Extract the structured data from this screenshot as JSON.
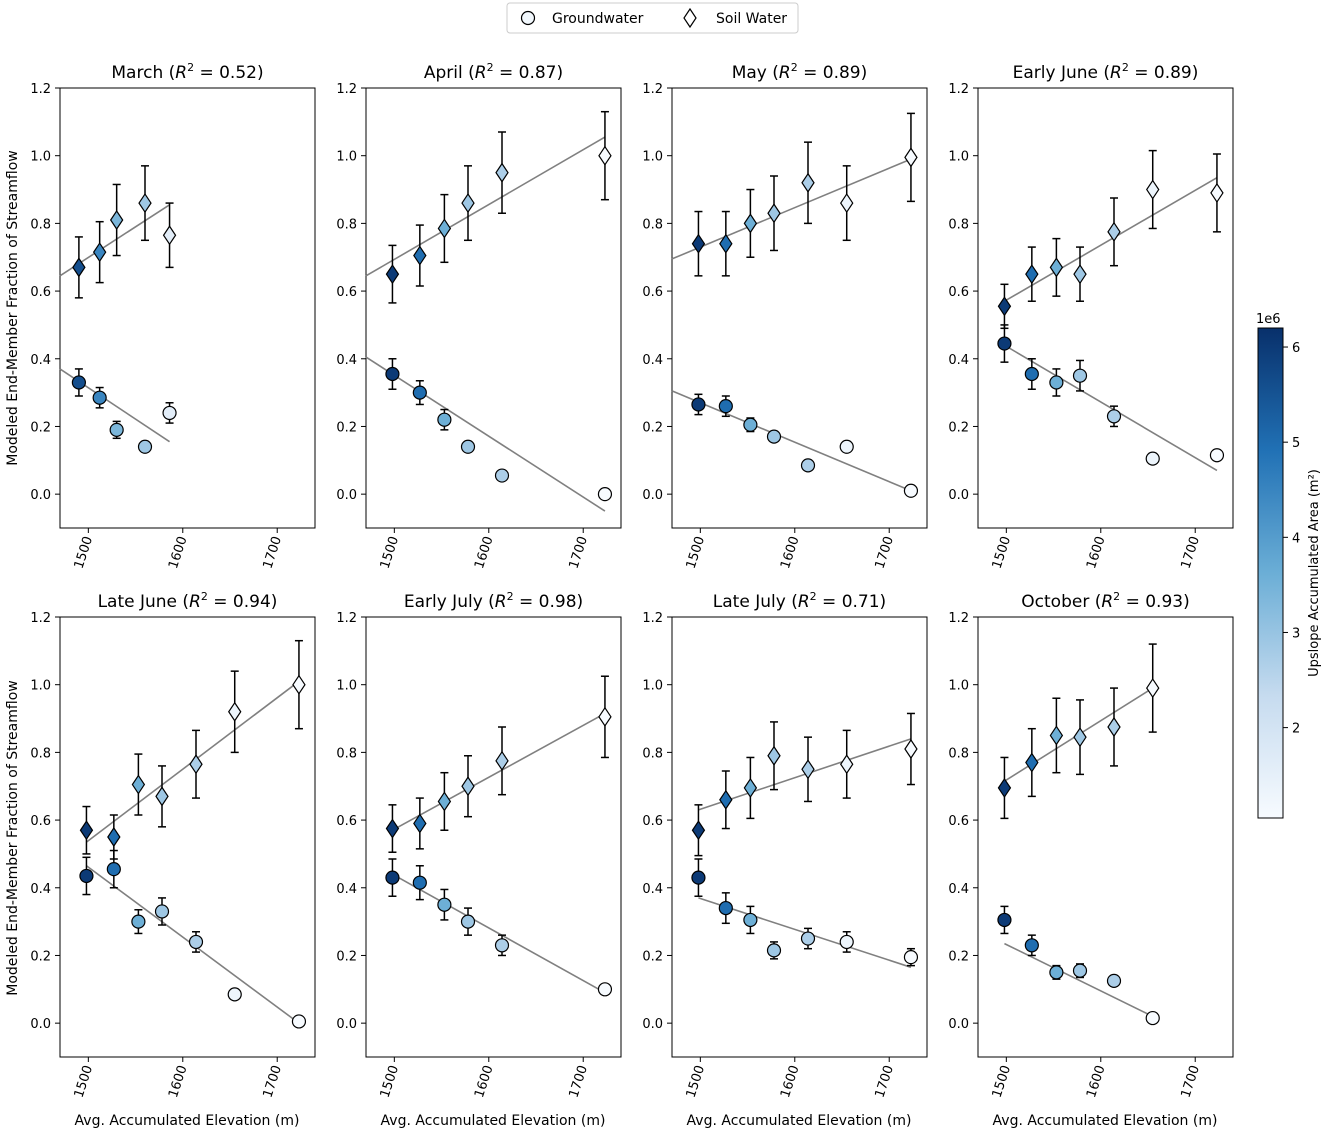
{
  "legend": {
    "items": [
      {
        "label": "Groundwater",
        "marker": "circle"
      },
      {
        "label": "Soil Water",
        "marker": "diamond"
      }
    ]
  },
  "ylabel": "Modeled End-Member Fraction of Streamflow",
  "xlabel": "Avg. Accumulated Elevation (m)",
  "colorbar": {
    "label": "Upslope Accumulated Area (m²)",
    "multiplier": "1e6",
    "ticks": [
      2,
      3,
      4,
      5,
      6
    ],
    "range": [
      1.05,
      6.2
    ],
    "colors": {
      "low": "#f7fbff",
      "mid": "#6baed6",
      "high": "#08306b"
    }
  },
  "colors": {
    "fit_line": "#808080",
    "marker_edge": "#000000"
  },
  "chart_data": [
    {
      "type": "scatter",
      "title": "March",
      "r2": "0.52",
      "xlim": [
        1470,
        1740
      ],
      "ylim": [
        -0.1,
        1.2
      ],
      "xticks": [
        1500,
        1600,
        1700
      ],
      "yticks": [
        0.0,
        0.2,
        0.4,
        0.6,
        0.8,
        1.0,
        1.2
      ],
      "series": [
        {
          "name": "Groundwater",
          "marker": "circle",
          "x": [
            1490,
            1512,
            1530,
            1560,
            1586
          ],
          "y": [
            0.33,
            0.285,
            0.19,
            0.14,
            0.24
          ],
          "err": [
            0.04,
            0.03,
            0.025,
            0.015,
            0.03
          ],
          "area": [
            5.6,
            4.5,
            3.4,
            2.9,
            1.6
          ],
          "fit": [
            [
              1470,
              0.37
            ],
            [
              1586,
              0.155
            ]
          ]
        },
        {
          "name": "Soil Water",
          "marker": "diamond",
          "x": [
            1490,
            1512,
            1530,
            1560,
            1586
          ],
          "y": [
            0.67,
            0.715,
            0.81,
            0.86,
            0.765
          ],
          "err": [
            0.09,
            0.09,
            0.105,
            0.11,
            0.095
          ],
          "area": [
            5.6,
            4.5,
            3.4,
            2.9,
            1.6
          ],
          "fit": [
            [
              1470,
              0.645
            ],
            [
              1586,
              0.855
            ]
          ]
        }
      ]
    },
    {
      "type": "scatter",
      "title": "April",
      "r2": "0.87",
      "xlim": [
        1470,
        1740
      ],
      "ylim": [
        -0.1,
        1.2
      ],
      "xticks": [
        1500,
        1600,
        1700
      ],
      "yticks": [
        0.0,
        0.2,
        0.4,
        0.6,
        0.8,
        1.0,
        1.2
      ],
      "series": [
        {
          "name": "Groundwater",
          "marker": "circle",
          "x": [
            1498,
            1527,
            1553,
            1578,
            1614,
            1723
          ],
          "y": [
            0.355,
            0.3,
            0.22,
            0.14,
            0.055,
            0.0
          ],
          "err": [
            0.045,
            0.035,
            0.03,
            0.015,
            0.01,
            0.01
          ],
          "area": [
            6.0,
            5.0,
            3.6,
            2.9,
            2.7,
            1.05
          ],
          "fit": [
            [
              1470,
              0.405
            ],
            [
              1723,
              -0.05
            ]
          ]
        },
        {
          "name": "Soil Water",
          "marker": "diamond",
          "x": [
            1498,
            1527,
            1553,
            1578,
            1614,
            1723
          ],
          "y": [
            0.65,
            0.705,
            0.785,
            0.86,
            0.95,
            1.0
          ],
          "err": [
            0.085,
            0.09,
            0.1,
            0.11,
            0.12,
            0.13
          ],
          "area": [
            6.0,
            5.0,
            3.6,
            2.9,
            2.7,
            1.05
          ],
          "fit": [
            [
              1470,
              0.645
            ],
            [
              1723,
              1.055
            ]
          ]
        }
      ]
    },
    {
      "type": "scatter",
      "title": "May",
      "r2": "0.89",
      "xlim": [
        1470,
        1740
      ],
      "ylim": [
        -0.1,
        1.2
      ],
      "xticks": [
        1500,
        1600,
        1700
      ],
      "yticks": [
        0.0,
        0.2,
        0.4,
        0.6,
        0.8,
        1.0,
        1.2
      ],
      "series": [
        {
          "name": "Groundwater",
          "marker": "circle",
          "x": [
            1498,
            1527,
            1553,
            1578,
            1614,
            1655,
            1723
          ],
          "y": [
            0.265,
            0.26,
            0.205,
            0.17,
            0.085,
            0.14,
            0.01
          ],
          "err": [
            0.03,
            0.03,
            0.02,
            0.015,
            0.01,
            0.015,
            0.01
          ],
          "area": [
            6.0,
            5.0,
            3.6,
            2.9,
            2.7,
            1.3,
            1.05
          ],
          "fit": [
            [
              1470,
              0.305
            ],
            [
              1723,
              0.01
            ]
          ]
        },
        {
          "name": "Soil Water",
          "marker": "diamond",
          "x": [
            1498,
            1527,
            1553,
            1578,
            1614,
            1655,
            1723
          ],
          "y": [
            0.74,
            0.74,
            0.8,
            0.83,
            0.92,
            0.86,
            0.995
          ],
          "err": [
            0.095,
            0.095,
            0.1,
            0.11,
            0.12,
            0.11,
            0.13
          ],
          "area": [
            6.0,
            5.0,
            3.6,
            2.9,
            2.7,
            1.3,
            1.05
          ],
          "fit": [
            [
              1470,
              0.695
            ],
            [
              1723,
              0.99
            ]
          ]
        }
      ]
    },
    {
      "type": "scatter",
      "title": "Early June",
      "r2": "0.89",
      "xlim": [
        1470,
        1740
      ],
      "ylim": [
        -0.1,
        1.2
      ],
      "xticks": [
        1500,
        1600,
        1700
      ],
      "yticks": [
        0.0,
        0.2,
        0.4,
        0.6,
        0.8,
        1.0,
        1.2
      ],
      "series": [
        {
          "name": "Groundwater",
          "marker": "circle",
          "x": [
            1498,
            1527,
            1553,
            1578,
            1614,
            1655,
            1723
          ],
          "y": [
            0.445,
            0.355,
            0.33,
            0.35,
            0.23,
            0.105,
            0.115
          ],
          "err": [
            0.055,
            0.045,
            0.04,
            0.045,
            0.03,
            0.015,
            0.015
          ],
          "area": [
            6.0,
            5.0,
            3.6,
            2.9,
            2.7,
            1.3,
            1.05
          ],
          "fit": [
            [
              1498,
              0.44
            ],
            [
              1723,
              0.07
            ]
          ]
        },
        {
          "name": "Soil Water",
          "marker": "diamond",
          "x": [
            1498,
            1527,
            1553,
            1578,
            1614,
            1655,
            1723
          ],
          "y": [
            0.555,
            0.65,
            0.67,
            0.65,
            0.775,
            0.9,
            0.89
          ],
          "err": [
            0.065,
            0.08,
            0.085,
            0.08,
            0.1,
            0.115,
            0.115
          ],
          "area": [
            6.0,
            5.0,
            3.6,
            2.9,
            2.7,
            1.3,
            1.05
          ],
          "fit": [
            [
              1498,
              0.57
            ],
            [
              1723,
              0.935
            ]
          ]
        }
      ]
    },
    {
      "type": "scatter",
      "title": "Late June",
      "r2": "0.94",
      "xlim": [
        1470,
        1740
      ],
      "ylim": [
        -0.1,
        1.2
      ],
      "xticks": [
        1500,
        1600,
        1700
      ],
      "yticks": [
        0.0,
        0.2,
        0.4,
        0.6,
        0.8,
        1.0,
        1.2
      ],
      "series": [
        {
          "name": "Groundwater",
          "marker": "circle",
          "x": [
            1498,
            1527,
            1553,
            1578,
            1614,
            1655,
            1723
          ],
          "y": [
            0.435,
            0.455,
            0.3,
            0.33,
            0.24,
            0.085,
            0.005
          ],
          "err": [
            0.055,
            0.055,
            0.035,
            0.04,
            0.03,
            0.01,
            0.01
          ],
          "area": [
            6.0,
            5.0,
            3.6,
            2.9,
            2.7,
            1.3,
            1.05
          ],
          "fit": [
            [
              1498,
              0.465
            ],
            [
              1723,
              0.0
            ]
          ]
        },
        {
          "name": "Soil Water",
          "marker": "diamond",
          "x": [
            1498,
            1527,
            1553,
            1578,
            1614,
            1655,
            1723
          ],
          "y": [
            0.57,
            0.55,
            0.705,
            0.67,
            0.765,
            0.92,
            1.0
          ],
          "err": [
            0.07,
            0.065,
            0.09,
            0.09,
            0.1,
            0.12,
            0.13
          ],
          "area": [
            6.0,
            5.0,
            3.6,
            2.9,
            2.7,
            1.3,
            1.05
          ],
          "fit": [
            [
              1498,
              0.535
            ],
            [
              1723,
              1.01
            ]
          ]
        }
      ]
    },
    {
      "type": "scatter",
      "title": "Early July",
      "r2": "0.98",
      "xlim": [
        1470,
        1740
      ],
      "ylim": [
        -0.1,
        1.2
      ],
      "xticks": [
        1500,
        1600,
        1700
      ],
      "yticks": [
        0.0,
        0.2,
        0.4,
        0.6,
        0.8,
        1.0,
        1.2
      ],
      "series": [
        {
          "name": "Groundwater",
          "marker": "circle",
          "x": [
            1498,
            1527,
            1553,
            1578,
            1614,
            1723
          ],
          "y": [
            0.43,
            0.415,
            0.35,
            0.3,
            0.23,
            0.1
          ],
          "err": [
            0.055,
            0.05,
            0.045,
            0.04,
            0.03,
            0.01
          ],
          "area": [
            6.0,
            5.0,
            3.6,
            2.9,
            2.7,
            1.05
          ],
          "fit": [
            [
              1498,
              0.44
            ],
            [
              1723,
              0.09
            ]
          ]
        },
        {
          "name": "Soil Water",
          "marker": "diamond",
          "x": [
            1498,
            1527,
            1553,
            1578,
            1614,
            1723
          ],
          "y": [
            0.575,
            0.59,
            0.655,
            0.7,
            0.775,
            0.905
          ],
          "err": [
            0.07,
            0.075,
            0.085,
            0.09,
            0.1,
            0.12
          ],
          "area": [
            6.0,
            5.0,
            3.6,
            2.9,
            2.7,
            1.05
          ],
          "fit": [
            [
              1498,
              0.57
            ],
            [
              1723,
              0.915
            ]
          ]
        }
      ]
    },
    {
      "type": "scatter",
      "title": "Late July",
      "r2": "0.71",
      "xlim": [
        1470,
        1740
      ],
      "ylim": [
        -0.1,
        1.2
      ],
      "xticks": [
        1500,
        1600,
        1700
      ],
      "yticks": [
        0.0,
        0.2,
        0.4,
        0.6,
        0.8,
        1.0,
        1.2
      ],
      "series": [
        {
          "name": "Groundwater",
          "marker": "circle",
          "x": [
            1498,
            1527,
            1553,
            1578,
            1614,
            1655,
            1723
          ],
          "y": [
            0.43,
            0.34,
            0.305,
            0.215,
            0.25,
            0.24,
            0.195
          ],
          "err": [
            0.055,
            0.045,
            0.04,
            0.025,
            0.03,
            0.03,
            0.025
          ],
          "area": [
            6.0,
            5.0,
            3.6,
            2.9,
            2.7,
            1.3,
            1.05
          ],
          "fit": [
            [
              1498,
              0.37
            ],
            [
              1723,
              0.165
            ]
          ]
        },
        {
          "name": "Soil Water",
          "marker": "diamond",
          "x": [
            1498,
            1527,
            1553,
            1578,
            1614,
            1655,
            1723
          ],
          "y": [
            0.57,
            0.66,
            0.695,
            0.79,
            0.75,
            0.765,
            0.81
          ],
          "err": [
            0.075,
            0.085,
            0.09,
            0.1,
            0.095,
            0.1,
            0.105
          ],
          "area": [
            6.0,
            5.0,
            3.6,
            2.9,
            2.7,
            1.3,
            1.05
          ],
          "fit": [
            [
              1498,
              0.63
            ],
            [
              1723,
              0.84
            ]
          ]
        }
      ]
    },
    {
      "type": "scatter",
      "title": "October",
      "r2": "0.93",
      "xlim": [
        1470,
        1740
      ],
      "ylim": [
        -0.1,
        1.2
      ],
      "xticks": [
        1500,
        1600,
        1700
      ],
      "yticks": [
        0.0,
        0.2,
        0.4,
        0.6,
        0.8,
        1.0,
        1.2
      ],
      "series": [
        {
          "name": "Groundwater",
          "marker": "circle",
          "x": [
            1498,
            1527,
            1553,
            1578,
            1614,
            1655
          ],
          "y": [
            0.305,
            0.23,
            0.15,
            0.155,
            0.125,
            0.015
          ],
          "err": [
            0.04,
            0.03,
            0.02,
            0.02,
            0.015,
            0.01
          ],
          "area": [
            6.0,
            5.0,
            3.6,
            2.9,
            2.7,
            1.05
          ],
          "fit": [
            [
              1498,
              0.235
            ],
            [
              1655,
              0.02
            ]
          ]
        },
        {
          "name": "Soil Water",
          "marker": "diamond",
          "x": [
            1498,
            1527,
            1553,
            1578,
            1614,
            1655
          ],
          "y": [
            0.695,
            0.77,
            0.85,
            0.845,
            0.875,
            0.99
          ],
          "err": [
            0.09,
            0.1,
            0.11,
            0.11,
            0.115,
            0.13
          ],
          "area": [
            6.0,
            5.0,
            3.6,
            2.9,
            2.7,
            1.05
          ],
          "fit": [
            [
              1498,
              0.715
            ],
            [
              1655,
              0.99
            ]
          ]
        }
      ]
    }
  ]
}
